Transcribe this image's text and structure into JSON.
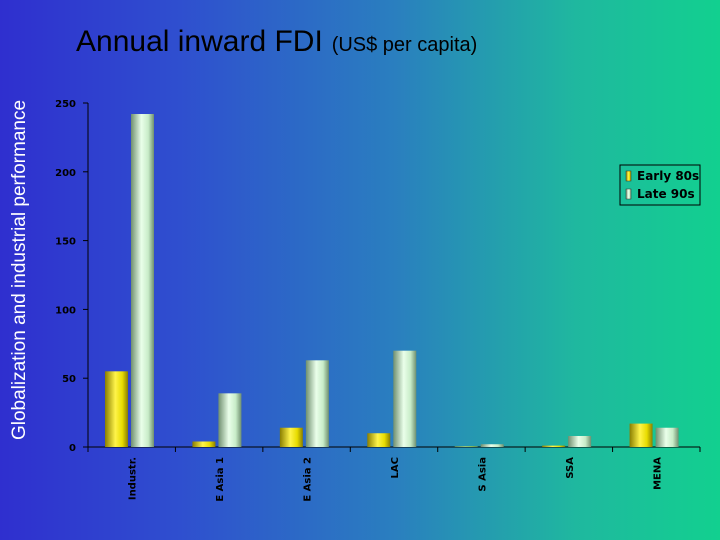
{
  "side_title": "Globalization and industrial performance",
  "chart_data": {
    "type": "bar",
    "title": "Annual inward FDI",
    "subtitle": "(US$ per capita)",
    "categories": [
      "Industr.",
      "E Asia 1",
      "E Asia 2",
      "LAC",
      "S Asia",
      "SSA",
      "MENA"
    ],
    "series": [
      {
        "name": "Early 80s",
        "values": [
          55,
          4,
          14,
          10,
          0,
          1,
          17
        ],
        "color": "#f2e600"
      },
      {
        "name": "Late 90s",
        "values": [
          242,
          39,
          63,
          70,
          2,
          8,
          14
        ],
        "color": "#c8f0c8"
      }
    ],
    "ylim": [
      0,
      250
    ],
    "yticks": [
      0,
      50,
      100,
      150,
      200,
      250
    ],
    "legend_position": "right",
    "grid": false
  }
}
